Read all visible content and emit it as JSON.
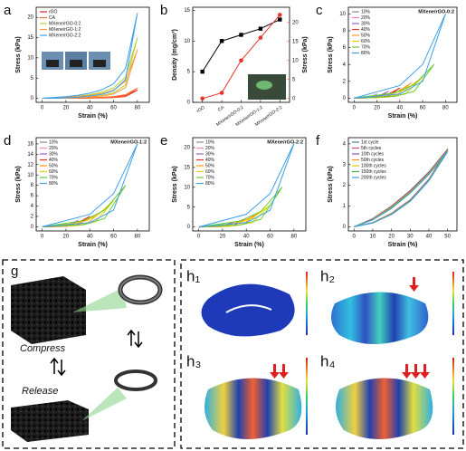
{
  "chart_data": [
    {
      "type": "line",
      "panel": "a",
      "xlabel": "Strain (%)",
      "ylabel": "Stress (kPa)",
      "x": [
        0,
        10,
        20,
        30,
        40,
        50,
        60,
        70,
        80,
        70,
        60,
        50,
        40,
        30,
        20,
        10,
        0
      ],
      "xlim": [
        -5,
        90
      ],
      "ylim": [
        -1,
        22.5
      ],
      "xticks": [
        0,
        20,
        40,
        60,
        80
      ],
      "yticks": [
        0,
        5,
        10,
        15,
        20
      ],
      "legend": "upper left",
      "series": [
        {
          "name": "rGO",
          "color": "#d62728",
          "values": [
            0,
            0.02,
            0.04,
            0.07,
            0.12,
            0.2,
            0.34,
            0.7,
            2,
            0.44,
            0.18,
            0.09,
            0.05,
            0.02,
            0.01,
            0,
            0
          ]
        },
        {
          "name": "CA",
          "color": "#ff6a2a",
          "values": [
            0,
            0.03,
            0.05,
            0.09,
            0.15,
            0.25,
            0.43,
            0.88,
            2.5,
            0.55,
            0.23,
            0.11,
            0.06,
            0.03,
            0.01,
            0,
            0
          ]
        },
        {
          "name": "MXene/rGO-0:2",
          "color": "#b5d334",
          "values": [
            0,
            0.15,
            0.3,
            0.53,
            0.9,
            1.5,
            2.55,
            5.25,
            15,
            3.3,
            1.35,
            0.68,
            0.38,
            0.18,
            0.08,
            0,
            0
          ]
        },
        {
          "name": "MXene/rGO-1:2",
          "color": "#ff9a3c",
          "values": [
            0,
            0.12,
            0.24,
            0.42,
            0.72,
            1.2,
            2.04,
            4.2,
            12,
            2.64,
            1.08,
            0.54,
            0.3,
            0.14,
            0.06,
            0,
            0
          ]
        },
        {
          "name": "MXene/rGO-2:2",
          "color": "#3aa0e8",
          "values": [
            0,
            0.21,
            0.42,
            0.74,
            1.26,
            2.1,
            3.57,
            7.35,
            21,
            4.62,
            1.89,
            0.95,
            0.53,
            0.25,
            0.11,
            0,
            0
          ]
        }
      ]
    },
    {
      "type": "line",
      "panel": "b",
      "ylabel": "Density (mg/cm³)",
      "y2label": "Stress (kPa)",
      "categories": [
        "rGO",
        "CA",
        "MXene/rGO-0:2",
        "MXene/rGO-1:2",
        "MXene/rGO-2:2"
      ],
      "ylim": [
        0,
        15.5
      ],
      "yticks": [
        0,
        5,
        10,
        15
      ],
      "y2lim": [
        -1,
        24
      ],
      "y2ticks": [
        0,
        5,
        10,
        15,
        20
      ],
      "series": [
        {
          "color": "#000000",
          "marker": "square",
          "values": [
            5,
            10,
            11,
            12,
            13.5
          ]
        },
        {
          "color": "#e8332a",
          "marker": "circle",
          "axis": "y2",
          "values": [
            0,
            1.5,
            10,
            16,
            22
          ]
        }
      ]
    },
    {
      "type": "line",
      "panel": "c",
      "title": "MXene/rGO-0:2",
      "xlabel": "Strain (%)",
      "ylabel": "Stress (kPa)",
      "xlim": [
        -5,
        90
      ],
      "ylim": [
        -0.5,
        10.8
      ],
      "xticks": [
        0,
        20,
        40,
        60,
        80
      ],
      "yticks": [
        0,
        2,
        4,
        6,
        8,
        10
      ],
      "legend": "upper left",
      "series": [
        {
          "name": "10%",
          "color": "#888888",
          "x": [
            0,
            5,
            7.5,
            10,
            7.5,
            5,
            0
          ],
          "values": [
            0,
            0.03,
            0.08,
            0.2,
            0.04,
            0.01,
            0
          ]
        },
        {
          "name": "20%",
          "color": "#ff7fbf",
          "x": [
            0,
            10,
            15,
            20,
            15,
            10,
            0
          ],
          "values": [
            0,
            0.08,
            0.2,
            0.5,
            0.1,
            0.03,
            0
          ]
        },
        {
          "name": "30%",
          "color": "#a05fd0",
          "x": [
            0,
            15,
            22.5,
            30,
            22.5,
            15,
            0
          ],
          "values": [
            0,
            0.12,
            0.32,
            0.8,
            0.16,
            0.04,
            0
          ]
        },
        {
          "name": "40%",
          "color": "#e8332a",
          "x": [
            0,
            20,
            30,
            40,
            30,
            20,
            0
          ],
          "values": [
            0,
            0.18,
            0.48,
            1.2,
            0.24,
            0.06,
            0
          ]
        },
        {
          "name": "50%",
          "color": "#ff9a1a",
          "x": [
            0,
            25,
            37.5,
            50,
            37.5,
            25,
            0
          ],
          "values": [
            0,
            0.27,
            0.72,
            1.8,
            0.36,
            0.09,
            0
          ]
        },
        {
          "name": "60%",
          "color": "#e6d200",
          "x": [
            0,
            30,
            45,
            60,
            45,
            30,
            0
          ],
          "values": [
            0,
            0.38,
            1,
            2.5,
            0.5,
            0.13,
            0
          ]
        },
        {
          "name": "70%",
          "color": "#66cc33",
          "x": [
            0,
            35,
            52.5,
            70,
            52.5,
            35,
            0
          ],
          "values": [
            0,
            0.6,
            1.6,
            4,
            0.8,
            0.2,
            0
          ]
        },
        {
          "name": "80%",
          "color": "#3aa0e8",
          "x": [
            0,
            40,
            60,
            80,
            60,
            40,
            0
          ],
          "values": [
            0,
            1.5,
            4,
            10,
            2,
            0.5,
            0
          ]
        }
      ]
    },
    {
      "type": "line",
      "panel": "d",
      "title": "MXene/rGO-1:2",
      "xlabel": "Strain (%)",
      "ylabel": "Stress (kPa)",
      "xlim": [
        -5,
        90
      ],
      "ylim": [
        -0.8,
        17.2
      ],
      "xticks": [
        0,
        20,
        40,
        60,
        80
      ],
      "yticks": [
        0,
        2,
        4,
        6,
        8,
        10,
        12,
        14,
        16
      ],
      "legend": "upper left",
      "series": [
        {
          "name": "10%",
          "color": "#888888",
          "x": [
            0,
            5,
            7.5,
            10,
            7.5,
            5,
            0
          ],
          "values": [
            0,
            0.05,
            0.12,
            0.3,
            0.06,
            0.02,
            0
          ]
        },
        {
          "name": "20%",
          "color": "#ff7fbf",
          "x": [
            0,
            10,
            15,
            20,
            15,
            10,
            0
          ],
          "values": [
            0,
            0.11,
            0.28,
            0.7,
            0.14,
            0.04,
            0
          ]
        },
        {
          "name": "30%",
          "color": "#a05fd0",
          "x": [
            0,
            15,
            22.5,
            30,
            22.5,
            15,
            0
          ],
          "values": [
            0,
            0.18,
            0.48,
            1.2,
            0.24,
            0.06,
            0
          ]
        },
        {
          "name": "40%",
          "color": "#e8332a",
          "x": [
            0,
            20,
            30,
            40,
            30,
            20,
            0
          ],
          "values": [
            0,
            0.3,
            0.8,
            2,
            0.4,
            0.1,
            0
          ]
        },
        {
          "name": "50%",
          "color": "#ff9a1a",
          "x": [
            0,
            25,
            37.5,
            50,
            37.5,
            25,
            0
          ],
          "values": [
            0,
            0.45,
            1.2,
            3,
            0.6,
            0.15,
            0
          ]
        },
        {
          "name": "60%",
          "color": "#e6d200",
          "x": [
            0,
            30,
            45,
            60,
            45,
            30,
            0
          ],
          "values": [
            0,
            0.75,
            2,
            5,
            1,
            0.25,
            0
          ]
        },
        {
          "name": "70%",
          "color": "#66cc33",
          "x": [
            0,
            35,
            52.5,
            70,
            52.5,
            35,
            0
          ],
          "values": [
            0,
            1.2,
            3.2,
            8,
            1.6,
            0.4,
            0
          ]
        },
        {
          "name": "80%",
          "color": "#3aa0e8",
          "x": [
            0,
            40,
            60,
            80,
            60,
            40,
            0
          ],
          "values": [
            0,
            2.4,
            6.4,
            16,
            3.2,
            0.8,
            0
          ]
        }
      ]
    },
    {
      "type": "line",
      "panel": "e",
      "title": "MXene/rGO-2:2",
      "xlabel": "Strain (%)",
      "ylabel": "Stress (kPa)",
      "xlim": [
        -5,
        90
      ],
      "ylim": [
        -1,
        22.5
      ],
      "xticks": [
        0,
        20,
        40,
        60,
        80
      ],
      "yticks": [
        0,
        5,
        10,
        15,
        20
      ],
      "legend": "upper left",
      "series": [
        {
          "name": "10%",
          "color": "#888888",
          "x": [
            0,
            5,
            7.5,
            10,
            7.5,
            5,
            0
          ],
          "values": [
            0,
            0.05,
            0.12,
            0.3,
            0.06,
            0.02,
            0
          ]
        },
        {
          "name": "20%",
          "color": "#ff7fbf",
          "x": [
            0,
            10,
            15,
            20,
            15,
            10,
            0
          ],
          "values": [
            0,
            0.11,
            0.28,
            0.7,
            0.14,
            0.04,
            0
          ]
        },
        {
          "name": "30%",
          "color": "#a05fd0",
          "x": [
            0,
            15,
            22.5,
            30,
            22.5,
            15,
            0
          ],
          "values": [
            0,
            0.2,
            0.52,
            1.3,
            0.26,
            0.07,
            0
          ]
        },
        {
          "name": "40%",
          "color": "#e8332a",
          "x": [
            0,
            20,
            30,
            40,
            30,
            20,
            0
          ],
          "values": [
            0,
            0.33,
            0.88,
            2.2,
            0.44,
            0.11,
            0
          ]
        },
        {
          "name": "50%",
          "color": "#ff9a1a",
          "x": [
            0,
            25,
            37.5,
            50,
            37.5,
            25,
            0
          ],
          "values": [
            0,
            0.53,
            1.4,
            3.5,
            0.7,
            0.18,
            0
          ]
        },
        {
          "name": "60%",
          "color": "#e6d200",
          "x": [
            0,
            30,
            45,
            60,
            45,
            30,
            0
          ],
          "values": [
            0,
            0.83,
            2.2,
            5.5,
            1.1,
            0.28,
            0
          ]
        },
        {
          "name": "70%",
          "color": "#66cc33",
          "x": [
            0,
            35,
            52.5,
            70,
            52.5,
            35,
            0
          ],
          "values": [
            0,
            1.5,
            4,
            10,
            2,
            0.5,
            0
          ]
        },
        {
          "name": "80%",
          "color": "#3aa0e8",
          "x": [
            0,
            40,
            60,
            80,
            60,
            40,
            0
          ],
          "values": [
            0,
            3.2,
            8.4,
            21,
            4.2,
            1.1,
            0
          ]
        }
      ]
    },
    {
      "type": "line",
      "panel": "f",
      "xlabel": "Strain (%)",
      "ylabel": "Stress (kPa)",
      "x": [
        0,
        10,
        20,
        30,
        40,
        50,
        40,
        30,
        20,
        10,
        0
      ],
      "xlim": [
        -3,
        55
      ],
      "ylim": [
        -0.2,
        4.3
      ],
      "xticks": [
        0,
        10,
        20,
        30,
        40,
        50
      ],
      "yticks": [
        0,
        1,
        2,
        3,
        4
      ],
      "legend": "upper left",
      "series": [
        {
          "name": "1st cycle",
          "color": "#4d7f8c",
          "values": [
            0,
            0.4,
            1.0,
            1.75,
            2.65,
            3.75,
            2.3,
            1.3,
            0.65,
            0.2,
            0
          ]
        },
        {
          "name": "5th cycles",
          "color": "#e0457b",
          "values": [
            0,
            0.38,
            0.98,
            1.72,
            2.62,
            3.72,
            2.28,
            1.28,
            0.64,
            0.2,
            0
          ]
        },
        {
          "name": "10th cycles",
          "color": "#8a4fbf",
          "values": [
            0,
            0.37,
            0.96,
            1.7,
            2.6,
            3.7,
            2.27,
            1.27,
            0.63,
            0.2,
            0
          ]
        },
        {
          "name": "50th cycles",
          "color": "#ff8c1a",
          "values": [
            0,
            0.36,
            0.94,
            1.68,
            2.58,
            3.68,
            2.25,
            1.25,
            0.62,
            0.19,
            0
          ]
        },
        {
          "name": "100th cycles",
          "color": "#d4c400",
          "values": [
            0,
            0.35,
            0.92,
            1.66,
            2.56,
            3.66,
            2.24,
            1.24,
            0.61,
            0.19,
            0
          ]
        },
        {
          "name": "150th cycles",
          "color": "#3fae3f",
          "values": [
            0,
            0.34,
            0.9,
            1.64,
            2.54,
            3.64,
            2.23,
            1.23,
            0.6,
            0.18,
            0
          ]
        },
        {
          "name": "200th cycles",
          "color": "#3aa0e8",
          "values": [
            0,
            0.33,
            0.88,
            1.62,
            2.52,
            3.62,
            2.22,
            1.22,
            0.59,
            0.18,
            0
          ]
        }
      ]
    }
  ],
  "panel_g": {
    "label": "g",
    "compress": "Compress",
    "release": "Release"
  },
  "panel_h": {
    "labels": [
      "h₁",
      "h₂",
      "h₃",
      "h₄"
    ]
  }
}
